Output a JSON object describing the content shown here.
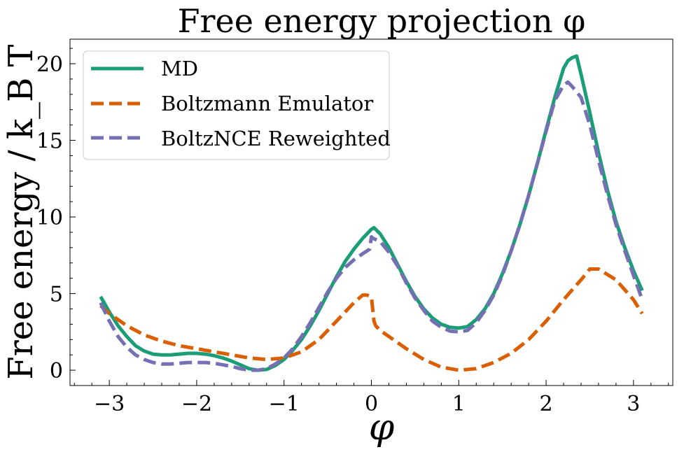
{
  "chart_data": {
    "type": "line",
    "title": "Free energy projection φ",
    "xlabel": "φ",
    "ylabel": "Free energy / k_B T",
    "xlim": [
      -3.45,
      3.45
    ],
    "ylim": [
      -1.0,
      21.6
    ],
    "x_ticks": [
      -3,
      -2,
      -1,
      0,
      1,
      2,
      3
    ],
    "x_tick_labels": [
      "−3",
      "−2",
      "−1",
      "0",
      "1",
      "2",
      "3"
    ],
    "y_ticks": [
      0,
      5,
      10,
      15,
      20
    ],
    "y_tick_labels": [
      "0",
      "5",
      "10",
      "15",
      "20"
    ],
    "grid": false,
    "legend_position": "top-left",
    "series": [
      {
        "name": "MD",
        "color": "#1b9e77",
        "dash": "solid",
        "x": [
          -3.1,
          -3.0,
          -2.9,
          -2.8,
          -2.7,
          -2.6,
          -2.5,
          -2.4,
          -2.3,
          -2.2,
          -2.1,
          -2.0,
          -1.9,
          -1.8,
          -1.7,
          -1.6,
          -1.5,
          -1.4,
          -1.3,
          -1.2,
          -1.1,
          -1.0,
          -0.9,
          -0.8,
          -0.7,
          -0.6,
          -0.5,
          -0.4,
          -0.3,
          -0.2,
          -0.1,
          0.0,
          0.03,
          0.1,
          0.2,
          0.3,
          0.4,
          0.5,
          0.6,
          0.7,
          0.8,
          0.9,
          1.0,
          1.1,
          1.2,
          1.3,
          1.4,
          1.5,
          1.6,
          1.7,
          1.8,
          1.9,
          2.0,
          2.1,
          2.2,
          2.25,
          2.3,
          2.35,
          2.4,
          2.5,
          2.6,
          2.7,
          2.8,
          2.9,
          3.0,
          3.1
        ],
        "y": [
          4.8,
          3.8,
          2.9,
          2.2,
          1.6,
          1.25,
          1.05,
          1.0,
          1.0,
          1.05,
          1.1,
          1.1,
          1.05,
          0.95,
          0.8,
          0.6,
          0.35,
          0.1,
          0.0,
          0.05,
          0.3,
          0.7,
          1.3,
          2.0,
          2.9,
          3.9,
          5.0,
          6.1,
          7.1,
          7.9,
          8.6,
          9.2,
          9.3,
          8.9,
          8.0,
          6.9,
          5.8,
          4.8,
          4.0,
          3.4,
          3.0,
          2.8,
          2.75,
          2.85,
          3.3,
          4.0,
          5.0,
          6.3,
          7.8,
          9.5,
          11.4,
          13.5,
          15.7,
          17.8,
          19.7,
          20.2,
          20.4,
          20.5,
          19.3,
          16.8,
          14.2,
          11.8,
          9.7,
          8.0,
          6.5,
          5.2
        ]
      },
      {
        "name": "Boltzmann Emulator",
        "color": "#d95f02",
        "dash": "dashed",
        "x": [
          -3.1,
          -3.0,
          -2.8,
          -2.6,
          -2.4,
          -2.2,
          -2.0,
          -1.8,
          -1.6,
          -1.4,
          -1.2,
          -1.0,
          -0.8,
          -0.6,
          -0.4,
          -0.2,
          -0.1,
          -0.05,
          0.0,
          0.03,
          0.05,
          0.1,
          0.2,
          0.4,
          0.6,
          0.8,
          1.0,
          1.2,
          1.4,
          1.6,
          1.8,
          2.0,
          2.2,
          2.4,
          2.5,
          2.6,
          2.8,
          3.0,
          3.1
        ],
        "y": [
          4.2,
          3.7,
          2.9,
          2.3,
          1.9,
          1.6,
          1.4,
          1.2,
          1.0,
          0.8,
          0.7,
          0.8,
          1.2,
          2.0,
          3.2,
          4.4,
          4.9,
          4.9,
          4.8,
          3.2,
          2.9,
          2.6,
          2.2,
          1.4,
          0.7,
          0.2,
          0.0,
          0.1,
          0.5,
          1.1,
          2.0,
          3.2,
          4.6,
          5.9,
          6.6,
          6.6,
          5.9,
          4.6,
          3.7
        ]
      },
      {
        "name": "BoltzNCE Reweighted",
        "color": "#7570b3",
        "dash": "dashed",
        "x": [
          -3.1,
          -3.0,
          -2.9,
          -2.8,
          -2.7,
          -2.6,
          -2.5,
          -2.4,
          -2.3,
          -2.2,
          -2.1,
          -2.0,
          -1.9,
          -1.8,
          -1.7,
          -1.6,
          -1.5,
          -1.4,
          -1.3,
          -1.2,
          -1.1,
          -1.0,
          -0.9,
          -0.8,
          -0.7,
          -0.6,
          -0.5,
          -0.4,
          -0.3,
          -0.2,
          -0.1,
          -0.02,
          0.0,
          0.02,
          0.1,
          0.2,
          0.3,
          0.4,
          0.5,
          0.6,
          0.7,
          0.8,
          0.9,
          1.0,
          1.1,
          1.2,
          1.3,
          1.4,
          1.5,
          1.6,
          1.7,
          1.8,
          1.9,
          2.0,
          2.1,
          2.2,
          2.25,
          2.3,
          2.4,
          2.5,
          2.6,
          2.7,
          2.8,
          2.9,
          3.0,
          3.1
        ],
        "y": [
          4.4,
          3.2,
          2.2,
          1.5,
          1.0,
          0.7,
          0.5,
          0.4,
          0.4,
          0.45,
          0.5,
          0.5,
          0.5,
          0.45,
          0.35,
          0.25,
          0.1,
          0.0,
          0.0,
          0.1,
          0.4,
          0.8,
          1.4,
          2.2,
          3.1,
          4.1,
          5.1,
          6.0,
          6.7,
          7.2,
          7.6,
          7.9,
          8.7,
          8.6,
          8.4,
          7.7,
          6.8,
          5.7,
          4.7,
          3.9,
          3.2,
          2.8,
          2.55,
          2.5,
          2.6,
          3.1,
          3.9,
          4.9,
          6.2,
          7.8,
          9.5,
          11.4,
          13.5,
          15.6,
          17.6,
          18.6,
          18.8,
          18.5,
          17.8,
          16.0,
          13.7,
          11.5,
          9.5,
          7.8,
          6.2,
          4.6
        ]
      }
    ]
  }
}
